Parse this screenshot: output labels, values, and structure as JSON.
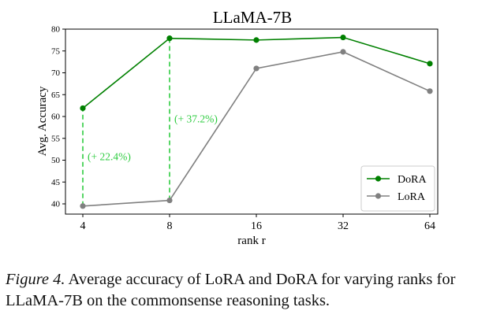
{
  "chart_data": {
    "type": "line",
    "title": "LLaMA-7B",
    "xlabel": "rank r",
    "ylabel": "Avg. Accuracy",
    "categories": [
      "4",
      "8",
      "16",
      "32",
      "64"
    ],
    "ylim": [
      38,
      80
    ],
    "yticks": [
      40,
      45,
      50,
      55,
      60,
      65,
      70,
      75,
      80
    ],
    "grid": false,
    "legend_position": "lower-right",
    "series": [
      {
        "name": "DoRA",
        "color": "#008000",
        "values": [
          61.9,
          77.9,
          77.5,
          78.1,
          72.1
        ]
      },
      {
        "name": "LoRA",
        "color": "#808080",
        "values": [
          39.5,
          40.8,
          71.0,
          74.8,
          65.8
        ]
      }
    ],
    "annotations": [
      {
        "category": "4",
        "from": 39.5,
        "to": 61.9,
        "text": "(+ 22.4%)",
        "color": "#2ecc40"
      },
      {
        "category": "8",
        "from": 40.8,
        "to": 77.9,
        "text": "(+ 37.2%)",
        "color": "#2ecc40"
      }
    ]
  },
  "caption": {
    "lead": "Figure 4.",
    "text": " Average accuracy of LoRA and DoRA for varying ranks for LLaMA-7B on the commonsense reasoning tasks."
  }
}
